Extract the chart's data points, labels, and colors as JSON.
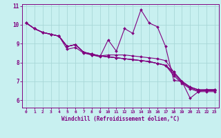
{
  "xlabel": "Windchill (Refroidissement éolien,°C)",
  "background_color": "#c8f0f0",
  "line_color": "#800080",
  "grid_color": "#a8d8d8",
  "xlim": [
    -0.5,
    23.5
  ],
  "ylim": [
    5.6,
    11.1
  ],
  "xticks": [
    0,
    1,
    2,
    3,
    4,
    5,
    6,
    7,
    8,
    9,
    10,
    11,
    12,
    13,
    14,
    15,
    16,
    17,
    18,
    19,
    20,
    21,
    22,
    23
  ],
  "yticks": [
    6,
    7,
    8,
    9,
    10,
    11
  ],
  "lines": [
    [
      10.1,
      9.8,
      9.6,
      9.5,
      9.4,
      8.7,
      8.8,
      8.5,
      8.4,
      8.3,
      9.2,
      8.6,
      9.8,
      9.55,
      10.8,
      10.1,
      9.9,
      8.85,
      7.05,
      7.0,
      6.1,
      6.45,
      6.55,
      6.55
    ],
    [
      10.1,
      9.8,
      9.6,
      9.5,
      9.4,
      8.85,
      8.95,
      8.55,
      8.4,
      8.35,
      8.4,
      8.4,
      8.4,
      8.35,
      8.3,
      8.25,
      8.2,
      8.1,
      7.5,
      7.0,
      6.7,
      6.55,
      6.55,
      6.55
    ],
    [
      10.1,
      9.8,
      9.6,
      9.5,
      9.4,
      8.85,
      8.95,
      8.55,
      8.45,
      8.35,
      8.3,
      8.25,
      8.2,
      8.15,
      8.1,
      8.05,
      7.95,
      7.85,
      7.5,
      7.0,
      6.7,
      6.55,
      6.55,
      6.55
    ],
    [
      10.1,
      9.8,
      9.6,
      9.5,
      9.4,
      8.85,
      8.95,
      8.55,
      8.45,
      8.35,
      8.3,
      8.25,
      8.2,
      8.15,
      8.1,
      8.05,
      7.95,
      7.85,
      7.4,
      6.95,
      6.65,
      6.5,
      6.5,
      6.5
    ],
    [
      10.1,
      9.8,
      9.6,
      9.5,
      9.4,
      8.85,
      8.95,
      8.55,
      8.45,
      8.35,
      8.3,
      8.25,
      8.2,
      8.15,
      8.1,
      8.05,
      7.95,
      7.85,
      7.3,
      6.9,
      6.6,
      6.45,
      6.45,
      6.45
    ]
  ]
}
